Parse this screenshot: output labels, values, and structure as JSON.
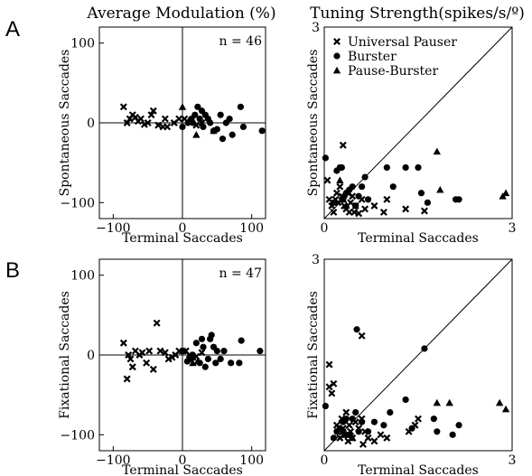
{
  "column_titles": {
    "left": "Average Modulation (%)",
    "right": "Tuning Strength(spikes/s/º)"
  },
  "panel_letters": {
    "top": "A",
    "bottom": "B"
  },
  "legend": {
    "universal_pauser": "Universal Pauser",
    "burster": "Burster",
    "pause_burster": "Pause-Burster"
  },
  "chart_data": [
    {
      "id": "A-modulation",
      "type": "scatter",
      "panel": "A",
      "xlabel": "Terminal Saccades",
      "ylabel": "Spontaneous Saccades",
      "annotation": "n = 46",
      "xlim": [
        -120,
        120
      ],
      "ylim": [
        -120,
        120
      ],
      "xticks": [
        -100,
        0,
        100
      ],
      "yticks": [
        -100,
        0,
        100
      ],
      "reference": "cross",
      "grid": false,
      "series": [
        {
          "type": "universal_pauser",
          "marker": "x",
          "points": [
            [
              -85,
              20
            ],
            [
              -80,
              0
            ],
            [
              -76,
              5
            ],
            [
              -72,
              10
            ],
            [
              -68,
              7
            ],
            [
              -64,
              2
            ],
            [
              -60,
              5
            ],
            [
              -55,
              -2
            ],
            [
              -50,
              0
            ],
            [
              -45,
              10
            ],
            [
              -42,
              15
            ],
            [
              -35,
              -3
            ],
            [
              -28,
              -5
            ],
            [
              -25,
              5
            ],
            [
              -22,
              -5
            ],
            [
              -12,
              0
            ],
            [
              -5,
              5
            ],
            [
              3,
              5
            ],
            [
              12,
              2
            ],
            [
              20,
              -3
            ],
            [
              28,
              0
            ]
          ]
        },
        {
          "type": "burster",
          "marker": "circle",
          "points": [
            [
              0,
              -5
            ],
            [
              8,
              0
            ],
            [
              13,
              5
            ],
            [
              15,
              0
            ],
            [
              18,
              10
            ],
            [
              22,
              20
            ],
            [
              25,
              5
            ],
            [
              28,
              15
            ],
            [
              30,
              -5
            ],
            [
              33,
              10
            ],
            [
              37,
              5
            ],
            [
              40,
              0
            ],
            [
              45,
              -10
            ],
            [
              50,
              -8
            ],
            [
              55,
              10
            ],
            [
              58,
              -20
            ],
            [
              63,
              0
            ],
            [
              68,
              5
            ],
            [
              72,
              -15
            ],
            [
              84,
              20
            ],
            [
              88,
              -5
            ],
            [
              115,
              -10
            ]
          ]
        },
        {
          "type": "pause_burster",
          "marker": "triangle",
          "points": [
            [
              0,
              20
            ],
            [
              20,
              -15
            ],
            [
              45,
              -10
            ]
          ]
        }
      ]
    },
    {
      "id": "A-tuning",
      "type": "scatter",
      "panel": "A",
      "xlabel": "Terminal Saccades",
      "ylabel": "Spontaneous Saccades",
      "xlim": [
        0,
        3
      ],
      "ylim": [
        0,
        3
      ],
      "xticks": [
        0,
        3
      ],
      "yticks": [
        3
      ],
      "reference": "diagonal",
      "grid": false,
      "series": [
        {
          "type": "universal_pauser",
          "marker": "x",
          "points": [
            [
              0.05,
              0.6
            ],
            [
              0.08,
              0.3
            ],
            [
              0.12,
              0.2
            ],
            [
              0.15,
              0.1
            ],
            [
              0.18,
              0.3
            ],
            [
              0.2,
              0.4
            ],
            [
              0.22,
              0.25
            ],
            [
              0.25,
              0.5
            ],
            [
              0.28,
              0.35
            ],
            [
              0.3,
              0.3
            ],
            [
              0.32,
              0.2
            ],
            [
              0.35,
              0.15
            ],
            [
              0.38,
              0.4
            ],
            [
              0.4,
              0.1
            ],
            [
              0.42,
              0.25
            ],
            [
              0.45,
              0.35
            ],
            [
              0.48,
              0.1
            ],
            [
              0.5,
              0.2
            ],
            [
              0.55,
              0.08
            ],
            [
              0.6,
              0.3
            ],
            [
              0.65,
              0.15
            ],
            [
              0.8,
              0.2
            ],
            [
              0.95,
              0.1
            ],
            [
              1.0,
              0.3
            ],
            [
              1.3,
              0.15
            ],
            [
              1.6,
              0.12
            ],
            [
              0.3,
              1.15
            ]
          ]
        },
        {
          "type": "burster",
          "marker": "circle",
          "points": [
            [
              0.02,
              0.95
            ],
            [
              0.15,
              0.25
            ],
            [
              0.2,
              0.75
            ],
            [
              0.25,
              0.8
            ],
            [
              0.28,
              0.8
            ],
            [
              0.3,
              0.3
            ],
            [
              0.32,
              0.35
            ],
            [
              0.35,
              0.4
            ],
            [
              0.4,
              0.45
            ],
            [
              0.45,
              0.5
            ],
            [
              0.5,
              0.2
            ],
            [
              0.55,
              0.35
            ],
            [
              0.6,
              0.5
            ],
            [
              0.65,
              0.65
            ],
            [
              0.7,
              0.3
            ],
            [
              1.0,
              0.8
            ],
            [
              1.1,
              0.5
            ],
            [
              1.3,
              0.8
            ],
            [
              1.5,
              0.8
            ],
            [
              1.55,
              0.4
            ],
            [
              1.65,
              0.25
            ],
            [
              2.1,
              0.3
            ],
            [
              2.15,
              0.3
            ]
          ]
        },
        {
          "type": "pause_burster",
          "marker": "triangle",
          "points": [
            [
              0.25,
              0.6
            ],
            [
              0.3,
              0.3
            ],
            [
              0.35,
              0.2
            ],
            [
              1.8,
              1.05
            ],
            [
              1.85,
              0.45
            ],
            [
              2.85,
              0.35
            ],
            [
              2.9,
              0.4
            ]
          ]
        }
      ]
    },
    {
      "id": "B-modulation",
      "type": "scatter",
      "panel": "B",
      "xlabel": "Terminal Saccades",
      "ylabel": "Fixational Saccades",
      "annotation": "n = 47",
      "xlim": [
        -120,
        120
      ],
      "ylim": [
        -120,
        120
      ],
      "xticks": [
        -100,
        0,
        100
      ],
      "yticks": [
        -100,
        0,
        100
      ],
      "reference": "cross",
      "grid": false,
      "series": [
        {
          "type": "universal_pauser",
          "marker": "x",
          "points": [
            [
              -85,
              15
            ],
            [
              -80,
              -30
            ],
            [
              -78,
              0
            ],
            [
              -75,
              -5
            ],
            [
              -72,
              -15
            ],
            [
              -68,
              5
            ],
            [
              -62,
              0
            ],
            [
              -58,
              3
            ],
            [
              -52,
              -10
            ],
            [
              -48,
              5
            ],
            [
              -42,
              -18
            ],
            [
              -37,
              40
            ],
            [
              -32,
              5
            ],
            [
              -25,
              3
            ],
            [
              -20,
              -5
            ],
            [
              -15,
              -3
            ],
            [
              -10,
              0
            ],
            [
              -5,
              5
            ],
            [
              5,
              5
            ],
            [
              10,
              0
            ],
            [
              15,
              -3
            ],
            [
              20,
              -2
            ],
            [
              28,
              3
            ]
          ]
        },
        {
          "type": "burster",
          "marker": "circle",
          "points": [
            [
              2,
              5
            ],
            [
              7,
              -8
            ],
            [
              12,
              -5
            ],
            [
              15,
              0
            ],
            [
              20,
              15
            ],
            [
              25,
              -10
            ],
            [
              28,
              20
            ],
            [
              30,
              10
            ],
            [
              33,
              -15
            ],
            [
              37,
              -5
            ],
            [
              40,
              20
            ],
            [
              42,
              25
            ],
            [
              45,
              10
            ],
            [
              48,
              -10
            ],
            [
              50,
              5
            ],
            [
              55,
              -5
            ],
            [
              60,
              5
            ],
            [
              70,
              -10
            ],
            [
              82,
              -10
            ],
            [
              85,
              18
            ],
            [
              112,
              5
            ]
          ]
        },
        {
          "type": "pause_burster",
          "marker": "triangle",
          "points": [
            [
              0,
              5
            ],
            [
              15,
              -10
            ],
            [
              22,
              -8
            ]
          ]
        }
      ]
    },
    {
      "id": "B-tuning",
      "type": "scatter",
      "panel": "B",
      "xlabel": "Terminal Saccades",
      "ylabel": "Fixational Saccades",
      "xlim": [
        0,
        3
      ],
      "ylim": [
        0,
        3
      ],
      "xticks": [
        0,
        3
      ],
      "yticks": [
        3
      ],
      "reference": "diagonal",
      "grid": false,
      "series": [
        {
          "type": "universal_pauser",
          "marker": "x",
          "points": [
            [
              0.08,
              1.35
            ],
            [
              0.08,
              1.0
            ],
            [
              0.12,
              0.9
            ],
            [
              0.15,
              1.05
            ],
            [
              0.2,
              0.4
            ],
            [
              0.22,
              0.3
            ],
            [
              0.25,
              0.2
            ],
            [
              0.28,
              0.5
            ],
            [
              0.3,
              0.35
            ],
            [
              0.32,
              0.25
            ],
            [
              0.35,
              0.6
            ],
            [
              0.38,
              0.15
            ],
            [
              0.4,
              0.4
            ],
            [
              0.42,
              0.3
            ],
            [
              0.45,
              0.2
            ],
            [
              0.5,
              0.45
            ],
            [
              0.55,
              0.35
            ],
            [
              0.6,
              0.5
            ],
            [
              0.62,
              0.1
            ],
            [
              0.65,
              0.3
            ],
            [
              0.7,
              0.2
            ],
            [
              0.8,
              0.15
            ],
            [
              0.9,
              0.25
            ],
            [
              1.0,
              0.2
            ],
            [
              1.35,
              0.3
            ],
            [
              1.45,
              0.4
            ],
            [
              1.5,
              0.5
            ],
            [
              0.6,
              1.8
            ]
          ]
        },
        {
          "type": "burster",
          "marker": "circle",
          "points": [
            [
              0.02,
              0.7
            ],
            [
              0.15,
              0.2
            ],
            [
              0.2,
              0.3
            ],
            [
              0.25,
              0.35
            ],
            [
              0.3,
              0.45
            ],
            [
              0.35,
              0.5
            ],
            [
              0.4,
              0.25
            ],
            [
              0.45,
              0.5
            ],
            [
              0.5,
              0.6
            ],
            [
              0.52,
              1.9
            ],
            [
              0.55,
              0.3
            ],
            [
              0.6,
              0.45
            ],
            [
              0.7,
              0.3
            ],
            [
              0.8,
              0.45
            ],
            [
              0.95,
              0.4
            ],
            [
              1.05,
              0.6
            ],
            [
              1.3,
              0.8
            ],
            [
              1.4,
              0.35
            ],
            [
              1.6,
              1.6
            ],
            [
              1.75,
              0.5
            ],
            [
              1.8,
              0.3
            ],
            [
              2.05,
              0.25
            ],
            [
              2.15,
              0.4
            ]
          ]
        },
        {
          "type": "pause_burster",
          "marker": "triangle",
          "points": [
            [
              0.3,
              0.3
            ],
            [
              0.35,
              0.25
            ],
            [
              0.45,
              0.2
            ],
            [
              1.8,
              0.75
            ],
            [
              2.0,
              0.75
            ],
            [
              2.8,
              0.75
            ],
            [
              2.9,
              0.65
            ]
          ]
        }
      ]
    }
  ]
}
